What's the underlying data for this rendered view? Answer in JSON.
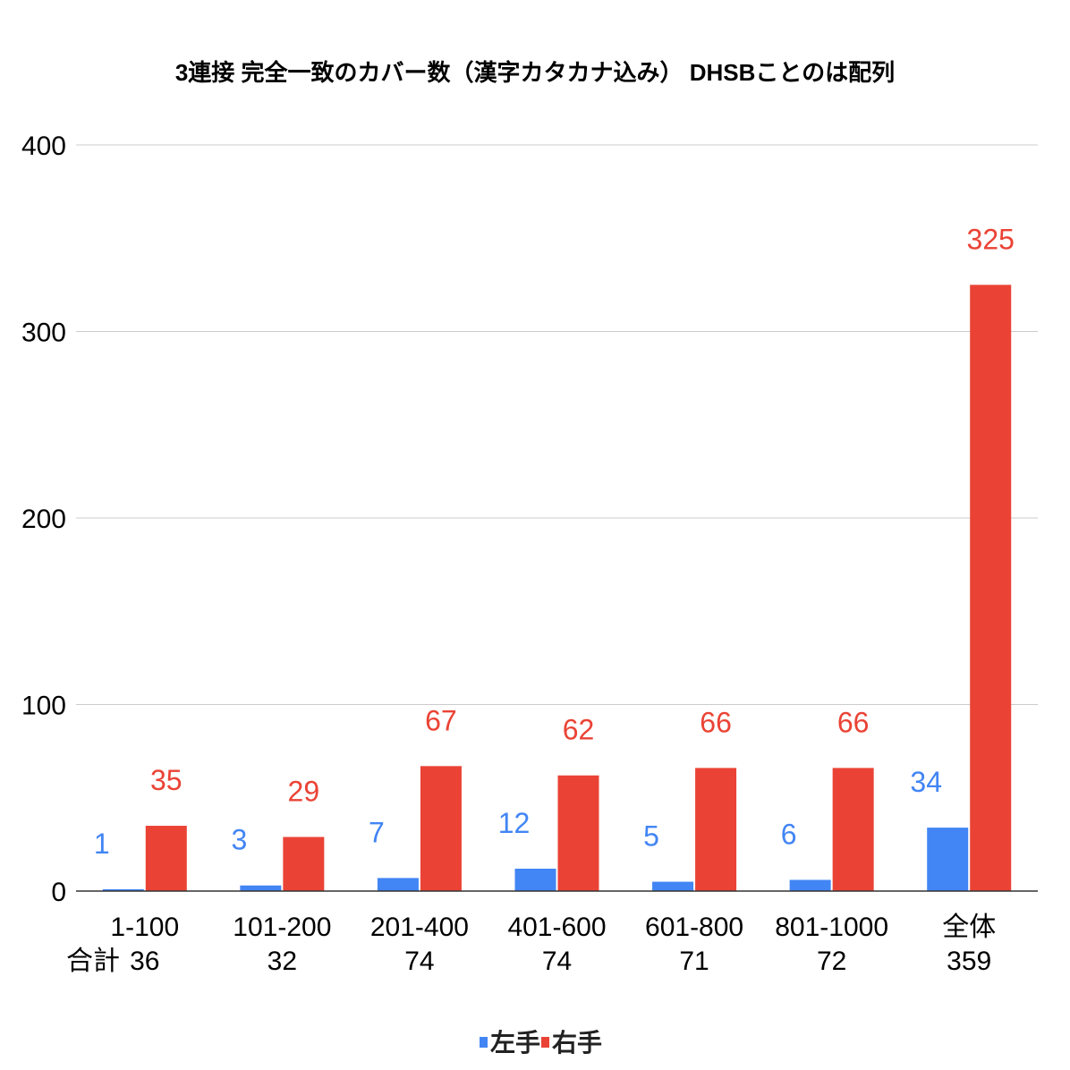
{
  "chart_data": {
    "type": "bar",
    "title": "3連接 完全一致のカバー数（漢字カタカナ込み） DHSBことのは配列",
    "categories": [
      "1-100",
      "101-200",
      "201-400",
      "401-600",
      "601-800",
      "801-1000",
      "全体"
    ],
    "totals_label": "合計",
    "totals": [
      "36",
      "32",
      "74",
      "74",
      "71",
      "72",
      "359"
    ],
    "series": [
      {
        "name": "左手",
        "color": "#4285f4",
        "values": [
          1,
          3,
          7,
          12,
          5,
          6,
          34
        ]
      },
      {
        "name": "右手",
        "color": "#ea4335",
        "values": [
          35,
          29,
          67,
          62,
          66,
          66,
          325
        ]
      }
    ],
    "ylim": [
      0,
      400
    ],
    "yticks": [
      0,
      100,
      200,
      300,
      400
    ],
    "grid": true,
    "legend": "bottom"
  }
}
